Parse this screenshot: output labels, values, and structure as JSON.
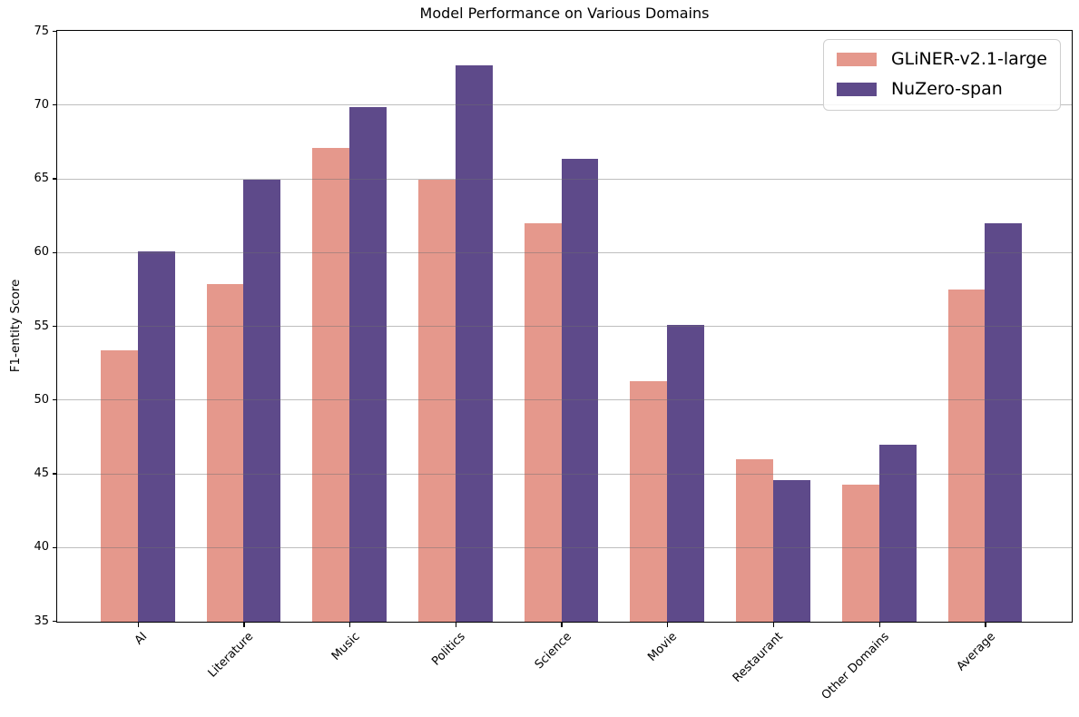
{
  "chart_data": {
    "type": "bar",
    "title": "Model Performance on Various Domains",
    "xlabel": "",
    "ylabel": "F1-entity Score",
    "categories": [
      "AI",
      "Literature",
      "Music",
      "Politics",
      "Science",
      "Movie",
      "Restaurant",
      "Other Domains",
      "Average"
    ],
    "series": [
      {
        "name": "GLiNER-v2.1-large",
        "slug": "gliner-v21-large",
        "color": "#e5988c",
        "values": [
          53.4,
          57.9,
          67.1,
          65.0,
          62.0,
          51.3,
          46.0,
          44.3,
          57.5
        ]
      },
      {
        "name": "NuZero-span",
        "slug": "nuzero-span",
        "color": "#5e4a8a",
        "values": [
          60.1,
          65.0,
          69.9,
          72.7,
          66.4,
          55.1,
          44.6,
          47.0,
          62.0
        ]
      }
    ],
    "ylim": [
      35,
      75
    ],
    "yticks": [
      35,
      40,
      45,
      50,
      55,
      60,
      65,
      70,
      75
    ],
    "grid": true,
    "grid_over_bars": true,
    "legend_position": "upper right",
    "bar_width_frac": 0.35,
    "xtick_rotation_deg": 45
  }
}
